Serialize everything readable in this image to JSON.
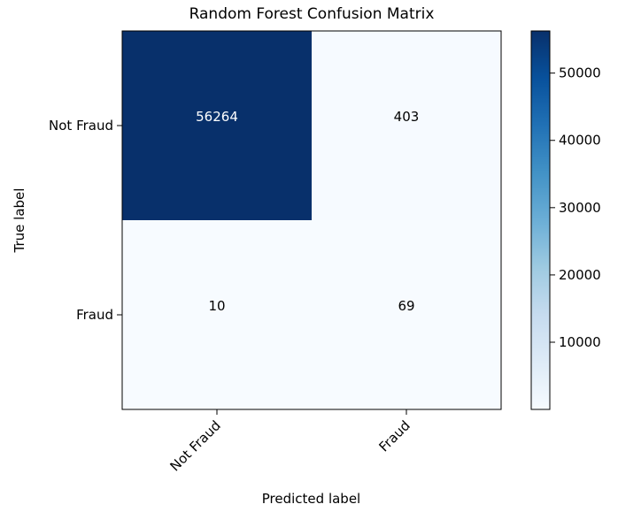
{
  "chart_data": {
    "type": "heatmap",
    "title": "Random Forest Confusion Matrix",
    "xlabel": "Predicted label",
    "ylabel": "True label",
    "x_categories": [
      "Not Fraud",
      "Fraud"
    ],
    "y_categories": [
      "Not Fraud",
      "Fraud"
    ],
    "values": [
      [
        56264,
        403
      ],
      [
        10,
        69
      ]
    ],
    "colormap": "Blues",
    "colorbar": {
      "ticks": [
        10000,
        20000,
        30000,
        40000,
        50000
      ],
      "range": [
        10,
        56264
      ]
    },
    "colors": {
      "min": "#f7fbff",
      "max": "#08306b",
      "text_on_dark": "#ffffff",
      "text_on_light": "#000000"
    },
    "grid": false
  }
}
